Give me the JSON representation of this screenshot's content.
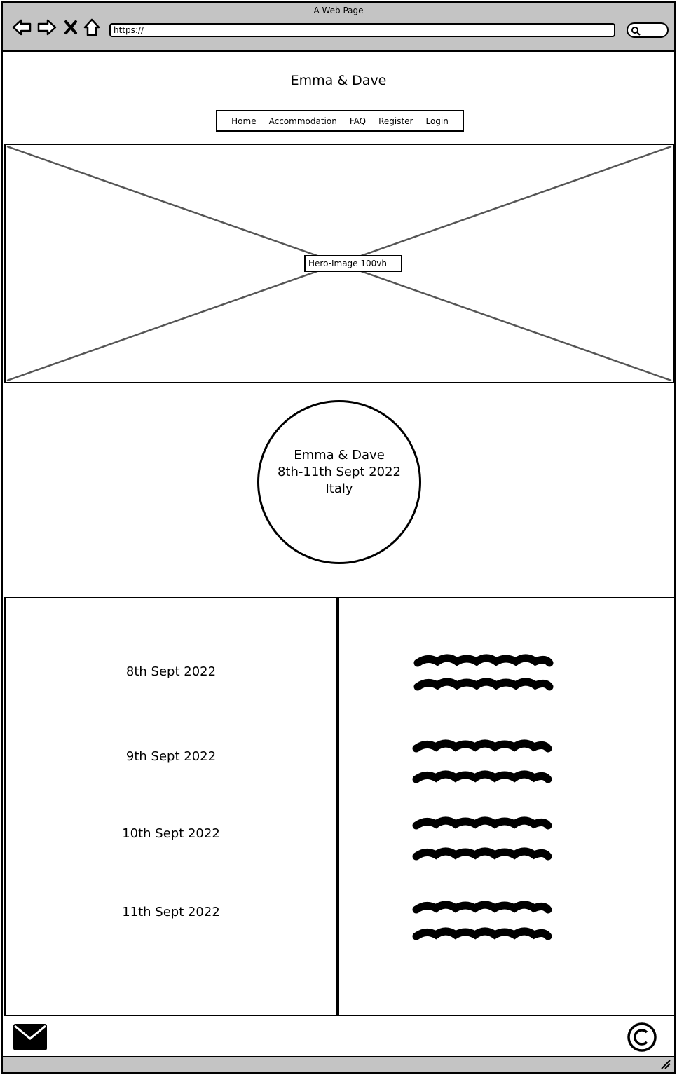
{
  "window": {
    "title": "A Web Page"
  },
  "address_bar": {
    "url": "https://"
  },
  "header": {
    "title": "Emma & Dave",
    "nav": [
      "Home",
      "Accommodation",
      "FAQ",
      "Register",
      "Login"
    ]
  },
  "hero": {
    "label": "Hero-Image 100vh"
  },
  "circle": {
    "lines": [
      "Emma & Dave",
      "8th-11th Sept 2022",
      "Italy"
    ]
  },
  "schedule": {
    "dates": [
      "8th Sept 2022",
      "9th Sept 2022",
      "10th Sept 2022",
      "11th Sept 2022"
    ]
  },
  "icons": {
    "back": "back-arrow-icon",
    "forward": "forward-arrow-icon",
    "stop": "close-icon",
    "home": "home-icon",
    "search": "search-icon",
    "mail": "envelope-icon",
    "copyright": "copyright-icon",
    "resize": "resize-grip-icon"
  }
}
